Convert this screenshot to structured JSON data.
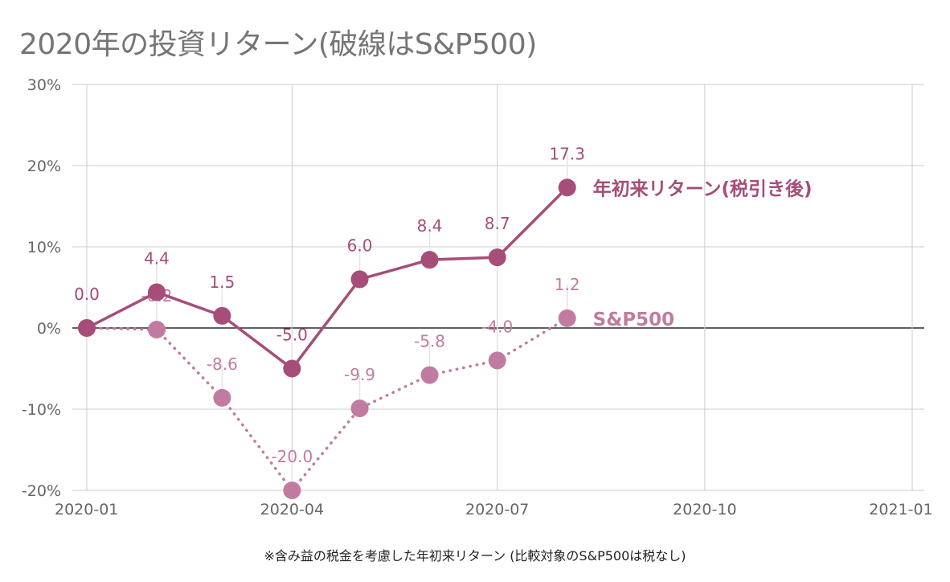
{
  "title": "2020年の投資リターン(破線はS&P500)",
  "note": "※含み益の税金を考慮した年初来リターン (比較対象のS&P500は税なし)",
  "chart_data": {
    "type": "line",
    "x_dates": [
      "2020-01-01",
      "2020-02-01",
      "2020-03-01",
      "2020-04-01",
      "2020-05-01",
      "2020-06-01",
      "2020-07-01",
      "2020-08-01"
    ],
    "x_ticks": [
      "2020-01",
      "2020-04",
      "2020-07",
      "2020-10",
      "2021-01"
    ],
    "x_tick_dates": [
      "2020-01-01",
      "2020-04-01",
      "2020-07-01",
      "2020-10-01",
      "2021-01-01"
    ],
    "xlim": [
      "2020-01-01",
      "2021-01-01"
    ],
    "ylim": [
      -20,
      30
    ],
    "y_ticks": [
      "30%",
      "20%",
      "10%",
      "0%",
      "-10%",
      "-20%"
    ],
    "y_tick_values": [
      30,
      20,
      10,
      0,
      -10,
      -20
    ],
    "grid": true,
    "series": [
      {
        "name": "年初来リターン(税引き後)",
        "values": [
          0.0,
          4.4,
          1.5,
          -5.0,
          6.0,
          8.4,
          8.7,
          17.3
        ],
        "labels": [
          "0.0",
          "4.4",
          "1.5",
          "-5.0",
          "6.0",
          "8.4",
          "8.7",
          "17.3"
        ],
        "color": "#a64d79",
        "dash": "solid"
      },
      {
        "name": "S&P500",
        "values": [
          0.0,
          -0.2,
          -8.6,
          -20.0,
          -9.9,
          -5.8,
          -4.0,
          1.2
        ],
        "labels": [
          "0.0",
          "-0.2",
          "-8.6",
          "-20.0",
          "-9.9",
          "-5.8",
          "-4.0",
          "1.2"
        ],
        "color": "#c27ba0",
        "dash": "dotted"
      }
    ]
  }
}
